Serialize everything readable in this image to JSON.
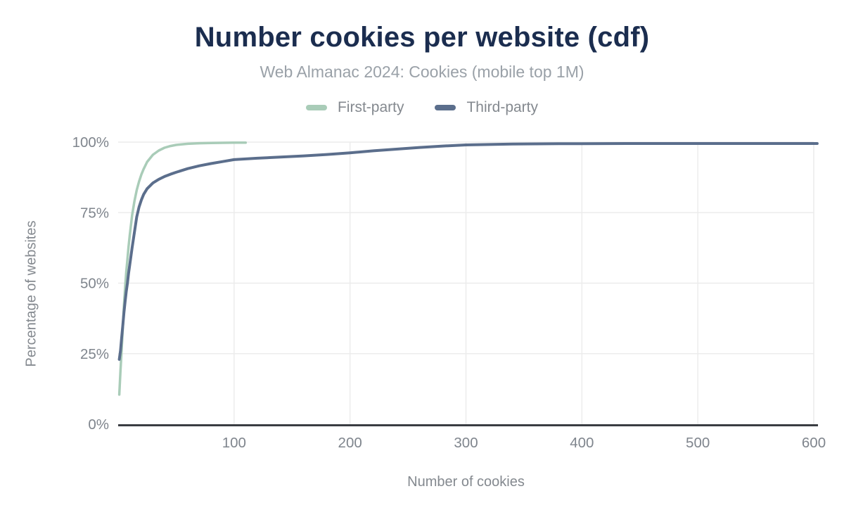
{
  "header": {
    "title": "Number cookies per website (cdf)",
    "subtitle": "Web Almanac 2024: Cookies (mobile top 1M)"
  },
  "colors": {
    "title": "#1b2d4f",
    "subtitle": "#9aa1a8",
    "tick_text": "#7f858d",
    "axis_line": "#3a3d42",
    "gridline": "#ececec",
    "first_party": "#a9ccb8",
    "third_party": "#5b6e8c"
  },
  "chart_data": {
    "type": "line",
    "title": "Number cookies per website (cdf)",
    "subtitle": "Web Almanac 2024: Cookies (mobile top 1M)",
    "xlabel": "Number of cookies",
    "ylabel": "Percentage of websites",
    "xlim": [
      0,
      600
    ],
    "ylim": [
      0,
      100
    ],
    "x_ticks": [
      "100",
      "200",
      "300",
      "400",
      "500",
      "600"
    ],
    "y_ticks": [
      "0%",
      "25%",
      "50%",
      "75%",
      "100%"
    ],
    "grid": true,
    "legend_position": "top",
    "series": [
      {
        "name": "First-party",
        "color": "#a9ccb8",
        "width": 3.5,
        "points": [
          [
            1,
            10.5
          ],
          [
            2,
            19
          ],
          [
            3,
            26
          ],
          [
            4,
            34
          ],
          [
            5,
            42
          ],
          [
            6,
            48.5
          ],
          [
            7,
            54
          ],
          [
            8,
            58.5
          ],
          [
            9,
            63
          ],
          [
            10,
            67
          ],
          [
            12,
            74
          ],
          [
            14,
            79
          ],
          [
            16,
            83
          ],
          [
            18,
            86
          ],
          [
            20,
            88.5
          ],
          [
            22,
            90.5
          ],
          [
            25,
            93
          ],
          [
            30,
            95.5
          ],
          [
            35,
            97
          ],
          [
            40,
            98
          ],
          [
            45,
            98.6
          ],
          [
            50,
            99
          ],
          [
            60,
            99.4
          ],
          [
            70,
            99.6
          ],
          [
            80,
            99.7
          ],
          [
            90,
            99.75
          ],
          [
            100,
            99.8
          ],
          [
            110,
            99.8
          ]
        ]
      },
      {
        "name": "Third-party",
        "color": "#5b6e8c",
        "width": 4,
        "points": [
          [
            1,
            23
          ],
          [
            2,
            26
          ],
          [
            3,
            30.5
          ],
          [
            4,
            35
          ],
          [
            5,
            39.5
          ],
          [
            6,
            43.5
          ],
          [
            7,
            47
          ],
          [
            8,
            50
          ],
          [
            9,
            53.5
          ],
          [
            10,
            56.5
          ],
          [
            12,
            62.5
          ],
          [
            14,
            68
          ],
          [
            16,
            73.5
          ],
          [
            18,
            77
          ],
          [
            20,
            79.5
          ],
          [
            22,
            81.5
          ],
          [
            25,
            83.5
          ],
          [
            30,
            85.5
          ],
          [
            35,
            86.8
          ],
          [
            40,
            87.8
          ],
          [
            45,
            88.6
          ],
          [
            50,
            89.3
          ],
          [
            60,
            90.6
          ],
          [
            70,
            91.6
          ],
          [
            80,
            92.4
          ],
          [
            90,
            93.1
          ],
          [
            100,
            93.8
          ],
          [
            120,
            94.3
          ],
          [
            140,
            94.7
          ],
          [
            160,
            95.1
          ],
          [
            180,
            95.6
          ],
          [
            200,
            96.2
          ],
          [
            220,
            96.9
          ],
          [
            240,
            97.5
          ],
          [
            260,
            98.1
          ],
          [
            280,
            98.6
          ],
          [
            300,
            99.0
          ],
          [
            320,
            99.15
          ],
          [
            340,
            99.3
          ],
          [
            360,
            99.38
          ],
          [
            380,
            99.42
          ],
          [
            400,
            99.45
          ],
          [
            450,
            99.5
          ],
          [
            500,
            99.5
          ],
          [
            550,
            99.5
          ],
          [
            600,
            99.5
          ],
          [
            603,
            99.5
          ]
        ]
      }
    ]
  }
}
